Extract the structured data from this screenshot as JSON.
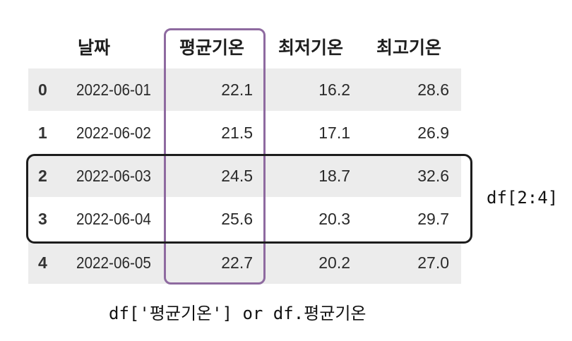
{
  "table": {
    "columns": [
      "날짜",
      "평균기온",
      "최저기온",
      "최고기온"
    ],
    "rows": [
      {
        "index": "0",
        "date": "2022-06-01",
        "avg": "22.1",
        "min": "16.2",
        "max": "28.6"
      },
      {
        "index": "1",
        "date": "2022-06-02",
        "avg": "21.5",
        "min": "17.1",
        "max": "26.9"
      },
      {
        "index": "2",
        "date": "2022-06-03",
        "avg": "24.5",
        "min": "18.7",
        "max": "32.6"
      },
      {
        "index": "3",
        "date": "2022-06-04",
        "avg": "25.6",
        "min": "20.3",
        "max": "29.7"
      },
      {
        "index": "4",
        "date": "2022-06-05",
        "avg": "22.7",
        "min": "20.2",
        "max": "27.0"
      }
    ]
  },
  "annotations": {
    "row_slice_label": "df[2:4]",
    "column_select_label": "df['평균기온'] or df.평균기온",
    "row_slice_color": "#1d1d1d",
    "column_select_color": "#8e6aa0"
  },
  "colors": {
    "shaded_row": "#ececec"
  }
}
